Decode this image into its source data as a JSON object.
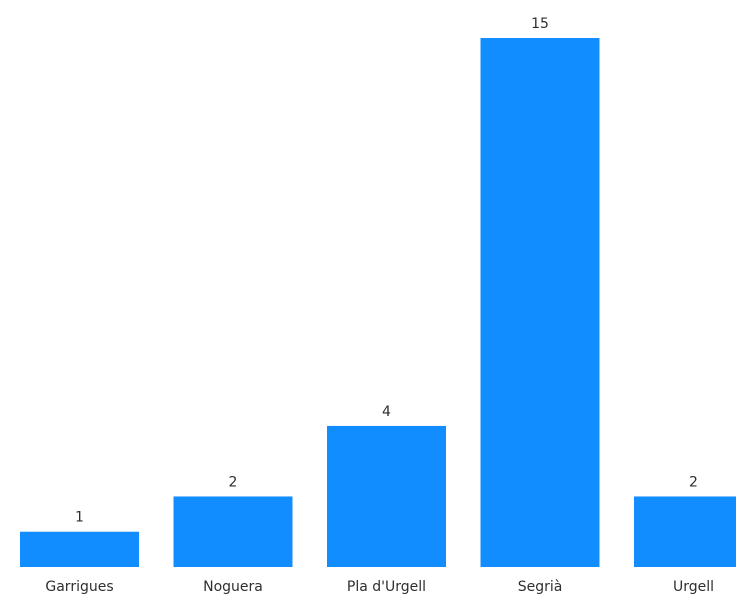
{
  "chart_data": {
    "type": "bar",
    "categories": [
      "Garrigues",
      "Noguera",
      "Pla d'Urgell",
      "Segrià",
      "Urgell"
    ],
    "values": [
      1,
      2,
      4,
      15,
      2
    ],
    "title": "",
    "xlabel": "",
    "ylabel": "",
    "ylim": [
      0,
      15
    ],
    "grid": false,
    "bar_color": "#118DFF",
    "data_labels": true
  }
}
